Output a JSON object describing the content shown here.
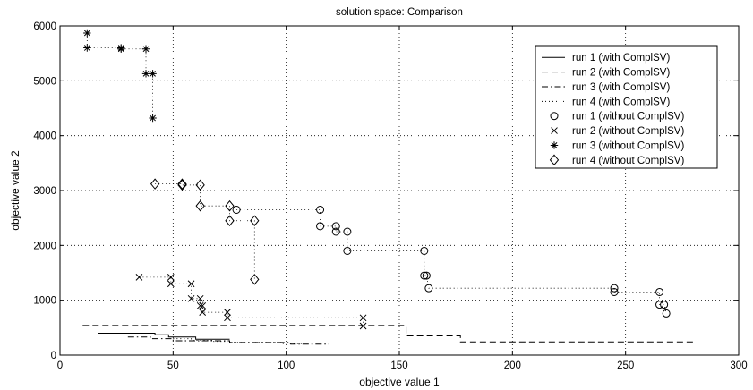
{
  "chart_data": {
    "type": "scatter",
    "title": "solution space: Comparison",
    "xlabel": "objective value 1",
    "ylabel": "objective value 2",
    "xlim": [
      0,
      300
    ],
    "ylim": [
      0,
      6000
    ],
    "xticks": [
      0,
      50,
      100,
      150,
      200,
      250,
      300
    ],
    "yticks": [
      0,
      1000,
      2000,
      3000,
      4000,
      5000,
      6000
    ],
    "xtick_labels": [
      "0",
      "50",
      "100",
      "150",
      "200",
      "250",
      "300"
    ],
    "ytick_labels": [
      "0",
      "1000",
      "2000",
      "3000",
      "4000",
      "5000",
      "6000"
    ],
    "grid": true,
    "legend_position": "top-right",
    "series": [
      {
        "name": "run 1 (with ComplSV)",
        "kind": "line",
        "dash": "solid",
        "x": [
          17,
          42,
          42,
          48,
          48,
          60,
          60,
          75
        ],
        "y": [
          400,
          400,
          370,
          370,
          330,
          330,
          290,
          290
        ]
      },
      {
        "name": "run 2 (with ComplSV)",
        "kind": "line",
        "dash": "dashed",
        "x": [
          10,
          153,
          153,
          177,
          177,
          281
        ],
        "y": [
          540,
          540,
          350,
          350,
          240,
          240
        ]
      },
      {
        "name": "run 3 (with ComplSV)",
        "kind": "line",
        "dash": "dashdot",
        "x": [
          30,
          40,
          40,
          50,
          50,
          75,
          75,
          102,
          102,
          119
        ],
        "y": [
          330,
          330,
          300,
          300,
          260,
          260,
          230,
          230,
          200,
          200
        ]
      },
      {
        "name": "run 4 (with ComplSV)",
        "kind": "line",
        "dash": "dotted",
        "x": [
          50,
          58,
          58,
          67,
          67,
          73,
          73,
          98,
          98,
          108
        ],
        "y": [
          300,
          300,
          270,
          270,
          250,
          250,
          230,
          230,
          210,
          210
        ]
      },
      {
        "name": "run 1 (without ComplSV)",
        "kind": "marker",
        "marker": "circle",
        "x": [
          78,
          115,
          115,
          122,
          122,
          127,
          127,
          161,
          161,
          162,
          163,
          245,
          245,
          265,
          265,
          267,
          268
        ],
        "y": [
          2650,
          2650,
          2350,
          2350,
          2250,
          2250,
          1900,
          1900,
          1450,
          1450,
          1220,
          1220,
          1150,
          1150,
          920,
          920,
          760
        ]
      },
      {
        "name": "run 2 (without ComplSV)",
        "kind": "marker",
        "marker": "x",
        "x": [
          35,
          49,
          49,
          58,
          58,
          62,
          62,
          63,
          63,
          74,
          74,
          134,
          134
        ],
        "y": [
          1420,
          1420,
          1300,
          1300,
          1030,
          1030,
          900,
          900,
          780,
          780,
          680,
          680,
          530
        ]
      },
      {
        "name": "run 3 (without ComplSV)",
        "kind": "marker",
        "marker": "star",
        "x": [
          12,
          12,
          27,
          27,
          38,
          38,
          41,
          41
        ],
        "y": [
          5870,
          5600,
          5600,
          5580,
          5580,
          5130,
          5130,
          4320
        ]
      },
      {
        "name": "run 4 (without ComplSV)",
        "kind": "marker",
        "marker": "diamond",
        "x": [
          42,
          54,
          54,
          62,
          62,
          75,
          75,
          86,
          86
        ],
        "y": [
          3120,
          3120,
          3100,
          3100,
          2720,
          2720,
          2450,
          2450,
          1380
        ]
      }
    ]
  }
}
